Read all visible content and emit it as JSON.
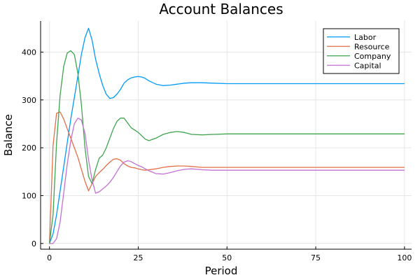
{
  "chart_data": {
    "type": "line",
    "title": "Account Balances",
    "xlabel": "Period",
    "ylabel": "Balance",
    "xlim": [
      -2.5,
      102
    ],
    "ylim": [
      -12,
      465
    ],
    "xticks": [
      0,
      25,
      50,
      75,
      100
    ],
    "yticks": [
      0,
      100,
      200,
      300,
      400
    ],
    "grid": true,
    "legend_position": "top-right",
    "series": [
      {
        "name": "Labor",
        "color": "#009AFA",
        "x": [
          0,
          1,
          2,
          3,
          4,
          5,
          6,
          7,
          8,
          9,
          10,
          11,
          12,
          13,
          14,
          15,
          16,
          17,
          18,
          19,
          20,
          21,
          22,
          23,
          24,
          25,
          26,
          27,
          28,
          30,
          32,
          34,
          36,
          38,
          40,
          43,
          46,
          50,
          55,
          60,
          70,
          80,
          90,
          100
        ],
        "y": [
          0,
          20,
          60,
          110,
          160,
          210,
          260,
          305,
          350,
          395,
          430,
          450,
          425,
          385,
          355,
          330,
          312,
          303,
          305,
          312,
          322,
          335,
          342,
          346,
          348,
          349,
          348,
          345,
          340,
          333,
          330,
          331,
          333,
          335,
          336,
          336,
          335,
          334,
          334,
          334,
          334,
          334,
          334,
          334
        ]
      },
      {
        "name": "Resource",
        "color": "#E36F47",
        "x": [
          0,
          1,
          2,
          3,
          4,
          5,
          6,
          7,
          8,
          9,
          10,
          11,
          12,
          13,
          14,
          15,
          16,
          17,
          18,
          19,
          20,
          21,
          22,
          23,
          24,
          25,
          26,
          27,
          28,
          30,
          32,
          34,
          36,
          38,
          40,
          43,
          46,
          50,
          55,
          60,
          70,
          80,
          90,
          100
        ],
        "y": [
          0,
          205,
          272,
          275,
          260,
          240,
          220,
          200,
          180,
          155,
          130,
          110,
          125,
          140,
          148,
          155,
          163,
          170,
          176,
          177,
          174,
          167,
          162,
          159,
          158,
          156,
          154,
          153,
          154,
          156,
          159,
          161,
          162,
          162,
          161,
          159,
          159,
          159,
          159,
          159,
          159,
          159,
          159,
          159
        ]
      },
      {
        "name": "Company",
        "color": "#3EA44E",
        "x": [
          0,
          1,
          2,
          3,
          4,
          5,
          6,
          7,
          8,
          9,
          10,
          11,
          12,
          13,
          14,
          15,
          16,
          17,
          18,
          19,
          20,
          21,
          22,
          23,
          24,
          25,
          26,
          27,
          28,
          30,
          32,
          34,
          36,
          38,
          40,
          43,
          46,
          50,
          55,
          60,
          70,
          80,
          90,
          100
        ],
        "y": [
          0,
          60,
          210,
          310,
          370,
          398,
          403,
          395,
          355,
          290,
          200,
          140,
          125,
          155,
          178,
          185,
          200,
          220,
          240,
          255,
          262,
          262,
          252,
          242,
          237,
          232,
          225,
          218,
          215,
          220,
          228,
          232,
          234,
          232,
          228,
          227,
          228,
          229,
          229,
          229,
          229,
          229,
          229,
          229
        ]
      },
      {
        "name": "Capital",
        "color": "#C271D2",
        "x": [
          0,
          1,
          2,
          3,
          4,
          5,
          6,
          7,
          8,
          9,
          10,
          11,
          12,
          13,
          14,
          15,
          16,
          17,
          18,
          19,
          20,
          21,
          22,
          23,
          24,
          25,
          26,
          27,
          28,
          30,
          32,
          34,
          36,
          38,
          40,
          43,
          46,
          50,
          55,
          60,
          70,
          80,
          90,
          100
        ],
        "y": [
          0,
          0,
          10,
          45,
          105,
          165,
          215,
          250,
          262,
          258,
          230,
          175,
          133,
          105,
          108,
          114,
          120,
          128,
          138,
          150,
          162,
          170,
          173,
          171,
          167,
          163,
          160,
          156,
          152,
          146,
          145,
          148,
          152,
          155,
          156,
          154,
          153,
          153,
          153,
          153,
          153,
          153,
          153,
          153
        ]
      }
    ]
  }
}
